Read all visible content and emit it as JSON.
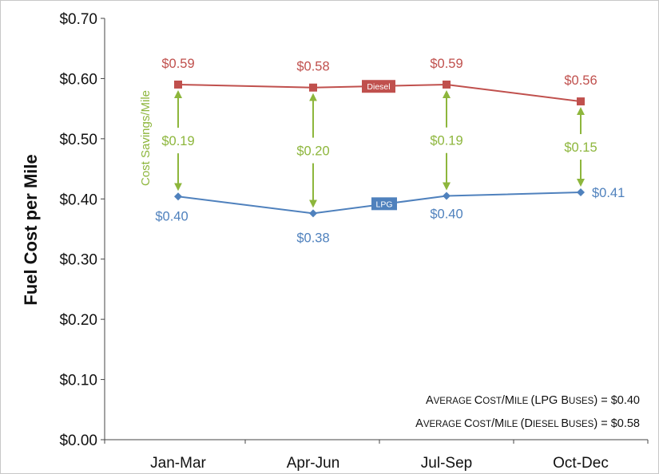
{
  "chart_data": {
    "type": "line",
    "categories": [
      "Jan-Mar",
      "Apr-Jun",
      "Jul-Sep",
      "Oct-Dec"
    ],
    "ylabel": "Fuel Cost per Mile",
    "ylim": [
      0,
      0.7
    ],
    "yticks": [
      "$0.00",
      "$0.10",
      "$0.20",
      "$0.30",
      "$0.40",
      "$0.50",
      "$0.60",
      "$0.70"
    ],
    "series": [
      {
        "name": "Diesel",
        "color": "#c0504d",
        "marker": "square",
        "values": [
          0.59,
          0.585,
          0.59,
          0.562
        ],
        "labels": [
          "$0.59",
          "$0.58",
          "$0.59",
          "$0.56"
        ]
      },
      {
        "name": "LPG",
        "color": "#4f81bd",
        "marker": "diamond",
        "values": [
          0.404,
          0.376,
          0.405,
          0.411
        ],
        "labels": [
          "$0.40",
          "$0.38",
          "$0.40",
          "$0.41"
        ]
      }
    ],
    "savings": {
      "caption": "Cost Savings/Mile",
      "color": "#8db63c",
      "labels": [
        "$0.19",
        "$0.20",
        "$0.19",
        "$0.15"
      ]
    },
    "notes": [
      {
        "segments": [
          {
            "t": "A",
            "s": "big"
          },
          {
            "t": "VERAGE ",
            "s": "small"
          },
          {
            "t": "C",
            "s": "big"
          },
          {
            "t": "OST",
            "s": "small"
          },
          {
            "t": "/",
            "s": "big"
          },
          {
            "t": "M",
            "s": "big"
          },
          {
            "t": "ILE ",
            "s": "small"
          },
          {
            "t": "(LPG B",
            "s": "big"
          },
          {
            "t": "USES",
            "s": "small"
          },
          {
            "t": ") = $0.40",
            "s": "big"
          }
        ]
      },
      {
        "segments": [
          {
            "t": "A",
            "s": "big"
          },
          {
            "t": "VERAGE ",
            "s": "small"
          },
          {
            "t": "C",
            "s": "big"
          },
          {
            "t": "OST",
            "s": "small"
          },
          {
            "t": "/",
            "s": "big"
          },
          {
            "t": "M",
            "s": "big"
          },
          {
            "t": "ILE ",
            "s": "small"
          },
          {
            "t": "(D",
            "s": "big"
          },
          {
            "t": "IESEL ",
            "s": "small"
          },
          {
            "t": "B",
            "s": "big"
          },
          {
            "t": "USES",
            "s": "small"
          },
          {
            "t": ") = $0.58",
            "s": "big"
          }
        ]
      }
    ],
    "grid": false,
    "legend": "inline on series lines"
  }
}
